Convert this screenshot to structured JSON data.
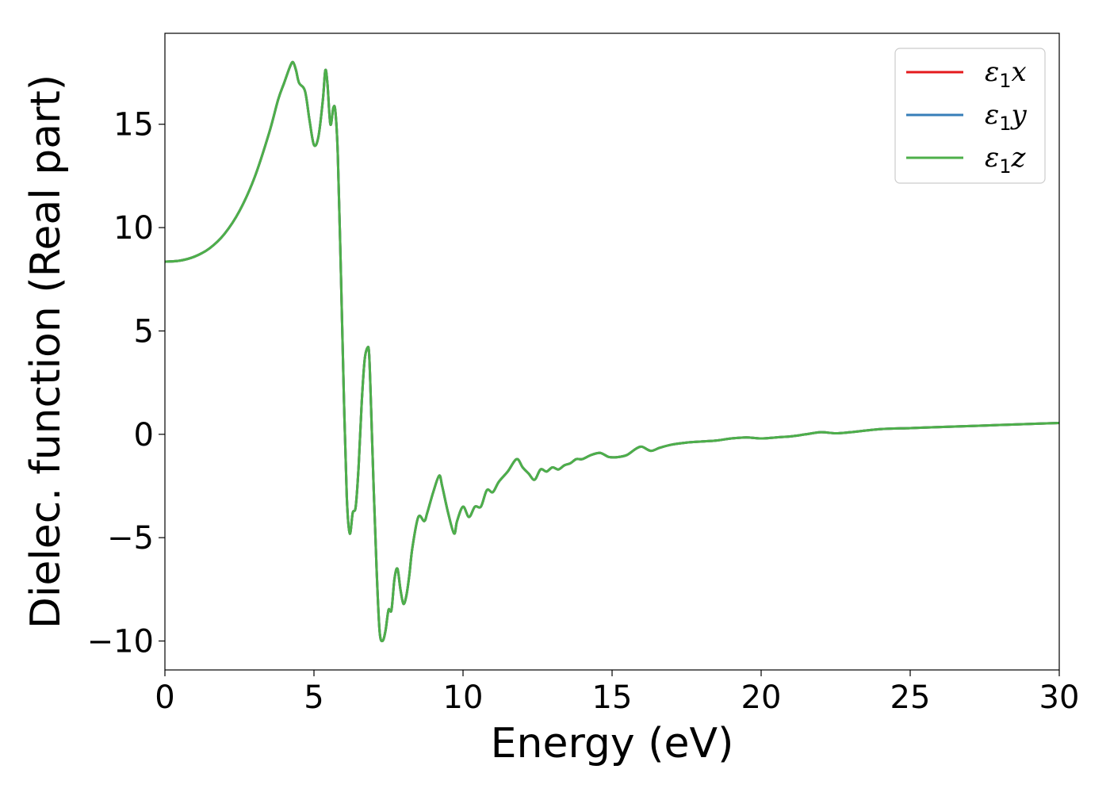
{
  "chart_data": {
    "type": "line",
    "title": "",
    "xlabel": "Energy (eV)",
    "ylabel": "Dielec. function (Real part)",
    "xlim": [
      0,
      30
    ],
    "ylim": [
      -11.4,
      19.4
    ],
    "xticks": [
      0,
      5,
      10,
      15,
      20,
      25,
      30
    ],
    "xtick_labels": [
      "0",
      "5",
      "10",
      "15",
      "20",
      "25",
      "30"
    ],
    "yticks": [
      -10,
      -5,
      0,
      5,
      10,
      15
    ],
    "ytick_labels": [
      "−10",
      "−5",
      "0",
      "5",
      "10",
      "15"
    ],
    "grid": false,
    "legend_position": "top-right",
    "x": [
      0.0,
      0.5,
      1.0,
      1.5,
      2.0,
      2.5,
      3.0,
      3.5,
      3.8,
      4.0,
      4.2,
      4.3,
      4.4,
      4.5,
      4.7,
      4.85,
      5.0,
      5.15,
      5.3,
      5.38,
      5.45,
      5.55,
      5.65,
      5.72,
      5.8,
      5.9,
      6.0,
      6.1,
      6.2,
      6.3,
      6.4,
      6.5,
      6.6,
      6.7,
      6.8,
      6.85,
      6.9,
      7.0,
      7.1,
      7.2,
      7.3,
      7.4,
      7.5,
      7.6,
      7.7,
      7.8,
      7.9,
      8.0,
      8.1,
      8.2,
      8.3,
      8.5,
      8.7,
      8.8,
      9.0,
      9.2,
      9.3,
      9.5,
      9.7,
      9.8,
      10.0,
      10.2,
      10.4,
      10.6,
      10.8,
      11.0,
      11.2,
      11.5,
      11.8,
      12.0,
      12.2,
      12.4,
      12.6,
      12.8,
      13.0,
      13.2,
      13.4,
      13.6,
      13.8,
      14.0,
      14.3,
      14.6,
      14.9,
      15.2,
      15.5,
      15.8,
      16.0,
      16.3,
      16.6,
      17.0,
      17.5,
      18.0,
      18.5,
      19.0,
      19.5,
      20.0,
      20.5,
      21.0,
      21.5,
      22.0,
      22.5,
      23.0,
      24.0,
      25.0,
      26.0,
      27.0,
      28.0,
      29.0,
      30.0
    ],
    "series": [
      {
        "name": "ε₁x",
        "color": "#e41a1c",
        "values": [
          8.35,
          8.4,
          8.6,
          9.0,
          9.7,
          10.8,
          12.4,
          14.6,
          16.2,
          17.0,
          17.8,
          18.0,
          17.6,
          17.0,
          16.6,
          15.2,
          14.0,
          14.4,
          16.2,
          17.6,
          17.0,
          15.0,
          15.8,
          15.6,
          13.5,
          8.0,
          2.0,
          -3.0,
          -4.8,
          -3.8,
          -3.5,
          -1.5,
          1.5,
          3.6,
          4.2,
          3.9,
          2.0,
          -2.5,
          -6.5,
          -9.5,
          -10.0,
          -9.5,
          -8.5,
          -8.5,
          -7.0,
          -6.5,
          -7.5,
          -8.2,
          -7.8,
          -6.8,
          -5.5,
          -4.0,
          -4.2,
          -3.8,
          -2.8,
          -2.0,
          -2.5,
          -3.8,
          -4.8,
          -4.2,
          -3.5,
          -4.0,
          -3.5,
          -3.5,
          -2.7,
          -2.8,
          -2.3,
          -1.8,
          -1.2,
          -1.6,
          -1.9,
          -2.2,
          -1.7,
          -1.8,
          -1.6,
          -1.7,
          -1.5,
          -1.4,
          -1.2,
          -1.2,
          -1.0,
          -0.9,
          -1.1,
          -1.1,
          -1.0,
          -0.7,
          -0.6,
          -0.8,
          -0.65,
          -0.5,
          -0.4,
          -0.35,
          -0.3,
          -0.2,
          -0.15,
          -0.2,
          -0.15,
          -0.1,
          0.0,
          0.1,
          0.05,
          0.1,
          0.25,
          0.3,
          0.35,
          0.4,
          0.45,
          0.5,
          0.55
        ]
      },
      {
        "name": "ε₁y",
        "color": "#377eb8",
        "values": [
          8.35,
          8.4,
          8.6,
          9.0,
          9.7,
          10.8,
          12.4,
          14.6,
          16.2,
          17.0,
          17.8,
          18.0,
          17.6,
          17.0,
          16.6,
          15.2,
          14.0,
          14.4,
          16.2,
          17.6,
          17.0,
          15.0,
          15.8,
          15.6,
          13.5,
          8.0,
          2.0,
          -3.0,
          -4.8,
          -3.8,
          -3.5,
          -1.5,
          1.5,
          3.6,
          4.2,
          3.9,
          2.0,
          -2.5,
          -6.5,
          -9.5,
          -10.0,
          -9.5,
          -8.5,
          -8.5,
          -7.0,
          -6.5,
          -7.5,
          -8.2,
          -7.8,
          -6.8,
          -5.5,
          -4.0,
          -4.2,
          -3.8,
          -2.8,
          -2.0,
          -2.5,
          -3.8,
          -4.8,
          -4.2,
          -3.5,
          -4.0,
          -3.5,
          -3.5,
          -2.7,
          -2.8,
          -2.3,
          -1.8,
          -1.2,
          -1.6,
          -1.9,
          -2.2,
          -1.7,
          -1.8,
          -1.6,
          -1.7,
          -1.5,
          -1.4,
          -1.2,
          -1.2,
          -1.0,
          -0.9,
          -1.1,
          -1.1,
          -1.0,
          -0.7,
          -0.6,
          -0.8,
          -0.65,
          -0.5,
          -0.4,
          -0.35,
          -0.3,
          -0.2,
          -0.15,
          -0.2,
          -0.15,
          -0.1,
          0.0,
          0.1,
          0.05,
          0.1,
          0.25,
          0.3,
          0.35,
          0.4,
          0.45,
          0.5,
          0.55
        ]
      },
      {
        "name": "ε₁z",
        "color": "#4daf4a",
        "values": [
          8.35,
          8.4,
          8.6,
          9.0,
          9.7,
          10.8,
          12.4,
          14.6,
          16.2,
          17.0,
          17.8,
          18.0,
          17.6,
          17.0,
          16.6,
          15.2,
          14.0,
          14.4,
          16.2,
          17.6,
          17.0,
          15.0,
          15.8,
          15.6,
          13.5,
          8.0,
          2.0,
          -3.0,
          -4.8,
          -3.8,
          -3.5,
          -1.5,
          1.5,
          3.6,
          4.2,
          3.9,
          2.0,
          -2.5,
          -6.5,
          -9.5,
          -10.0,
          -9.5,
          -8.5,
          -8.5,
          -7.0,
          -6.5,
          -7.5,
          -8.2,
          -7.8,
          -6.8,
          -5.5,
          -4.0,
          -4.2,
          -3.8,
          -2.8,
          -2.0,
          -2.5,
          -3.8,
          -4.8,
          -4.2,
          -3.5,
          -4.0,
          -3.5,
          -3.5,
          -2.7,
          -2.8,
          -2.3,
          -1.8,
          -1.2,
          -1.6,
          -1.9,
          -2.2,
          -1.7,
          -1.8,
          -1.6,
          -1.7,
          -1.5,
          -1.4,
          -1.2,
          -1.2,
          -1.0,
          -0.9,
          -1.1,
          -1.1,
          -1.0,
          -0.7,
          -0.6,
          -0.8,
          -0.65,
          -0.5,
          -0.4,
          -0.35,
          -0.3,
          -0.2,
          -0.15,
          -0.2,
          -0.15,
          -0.1,
          0.0,
          0.1,
          0.05,
          0.1,
          0.25,
          0.3,
          0.35,
          0.4,
          0.45,
          0.5,
          0.55
        ]
      }
    ],
    "legend": [
      {
        "base": "ε",
        "sub": "1",
        "suffix": "x"
      },
      {
        "base": "ε",
        "sub": "1",
        "suffix": "y"
      },
      {
        "base": "ε",
        "sub": "1",
        "suffix": "z"
      }
    ]
  }
}
